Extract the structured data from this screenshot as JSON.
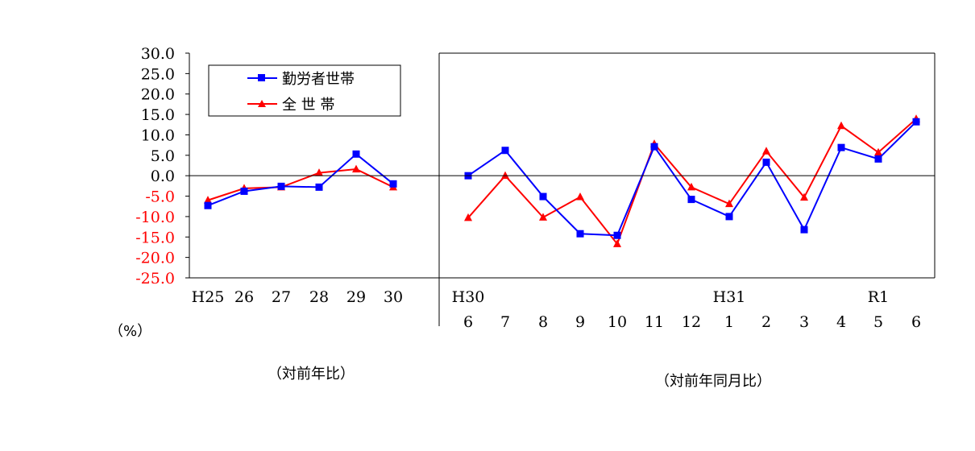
{
  "chart_data": {
    "type": "line",
    "unit_label": "（%）",
    "caption_left": "（対前年比）",
    "caption_right": "（対前年同月比）",
    "ylim": [
      -25,
      30
    ],
    "yticks": [
      "30.0",
      "25.0",
      "20.0",
      "15.0",
      "10.0",
      "5.0",
      "0.0",
      "-5.0",
      "-10.0",
      "-15.0",
      "-20.0",
      "-25.0"
    ],
    "negative_tick_color": "#ff0000",
    "legend_position": "top-left",
    "annual": {
      "categories": [
        "H25",
        "26",
        "27",
        "28",
        "29",
        "30"
      ],
      "series": [
        {
          "name": "勤労者世帯",
          "color": "#0000ff",
          "marker": "square",
          "values": [
            -7.3,
            -3.8,
            -2.6,
            -2.8,
            5.3,
            -2.0
          ]
        },
        {
          "name": "全 世 帯",
          "color": "#ff0000",
          "marker": "triangle",
          "values": [
            -6.0,
            -3.1,
            -2.8,
            0.7,
            1.6,
            -2.8
          ]
        }
      ]
    },
    "monthly": {
      "categories": [
        "6",
        "7",
        "8",
        "9",
        "10",
        "11",
        "12",
        "1",
        "2",
        "3",
        "4",
        "5",
        "6"
      ],
      "era_labels": [
        {
          "label": "H30",
          "index": 0
        },
        {
          "label": "H31",
          "index": 7
        },
        {
          "label": "R1",
          "index": 11
        }
      ],
      "series": [
        {
          "name": "勤労者世帯",
          "color": "#0000ff",
          "marker": "square",
          "values": [
            0.0,
            6.2,
            -5.1,
            -14.2,
            -14.6,
            7.1,
            -5.8,
            -10.0,
            3.3,
            -13.2,
            6.9,
            4.1,
            13.2
          ]
        },
        {
          "name": "全 世 帯",
          "color": "#ff0000",
          "marker": "triangle",
          "values": [
            -10.3,
            0.0,
            -10.2,
            -5.2,
            -16.7,
            7.8,
            -2.8,
            -6.9,
            6.0,
            -5.3,
            12.2,
            5.7,
            13.9
          ]
        }
      ]
    }
  }
}
